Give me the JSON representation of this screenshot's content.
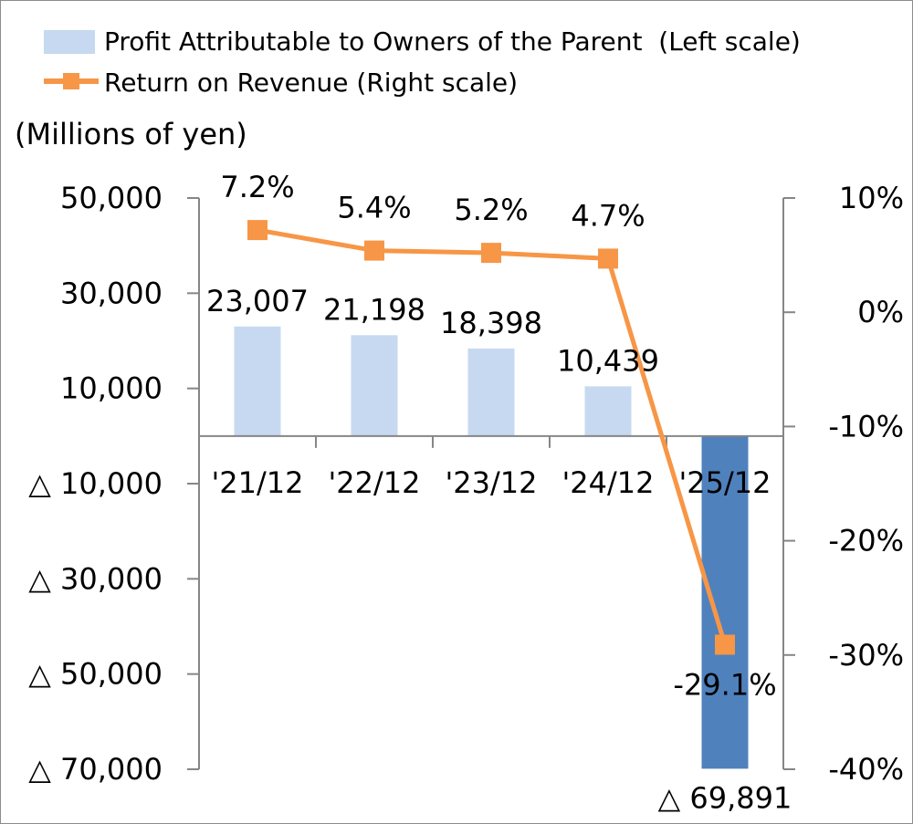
{
  "chart_data": {
    "type": "bar",
    "categories": [
      "'21/12",
      "'22/12",
      "'23/12",
      "'24/12",
      "'25/12"
    ],
    "series": [
      {
        "name": "Profit Attributable to Owners of the Parent  (Left scale)",
        "type": "bar",
        "axis": "left",
        "values": [
          23007,
          21198,
          18398,
          10439,
          -69891
        ],
        "labels": [
          "23,007",
          "21,198",
          "18,398",
          "10,439",
          "△ 69,891"
        ],
        "color": "#c6d9f1",
        "negative_color": "#4f81bd"
      },
      {
        "name": "Return on Revenue (Right scale)",
        "type": "line",
        "axis": "right",
        "values": [
          7.2,
          5.4,
          5.2,
          4.7,
          -29.1
        ],
        "labels": [
          "7.2%",
          "5.4%",
          "5.2%",
          "4.7%",
          "-29.1%"
        ],
        "color": "#f79646"
      }
    ],
    "left_axis": {
      "unit_label": "(Millions of yen)",
      "ylim": [
        -70000,
        50000
      ],
      "ticks": [
        50000,
        30000,
        10000,
        -10000,
        -30000,
        -50000,
        -70000
      ],
      "tick_labels": [
        "50,000",
        "30,000",
        "10,000",
        "△ 10,000",
        "△ 30,000",
        "△ 50,000",
        "△ 70,000"
      ]
    },
    "right_axis": {
      "ylim": [
        -40,
        10
      ],
      "ticks": [
        10,
        0,
        -10,
        -20,
        -30,
        -40
      ],
      "tick_labels": [
        "10%",
        "0%",
        "-10%",
        "-20%",
        "-30%",
        "-40%"
      ]
    },
    "legend_position": "top-left",
    "grid": false
  }
}
